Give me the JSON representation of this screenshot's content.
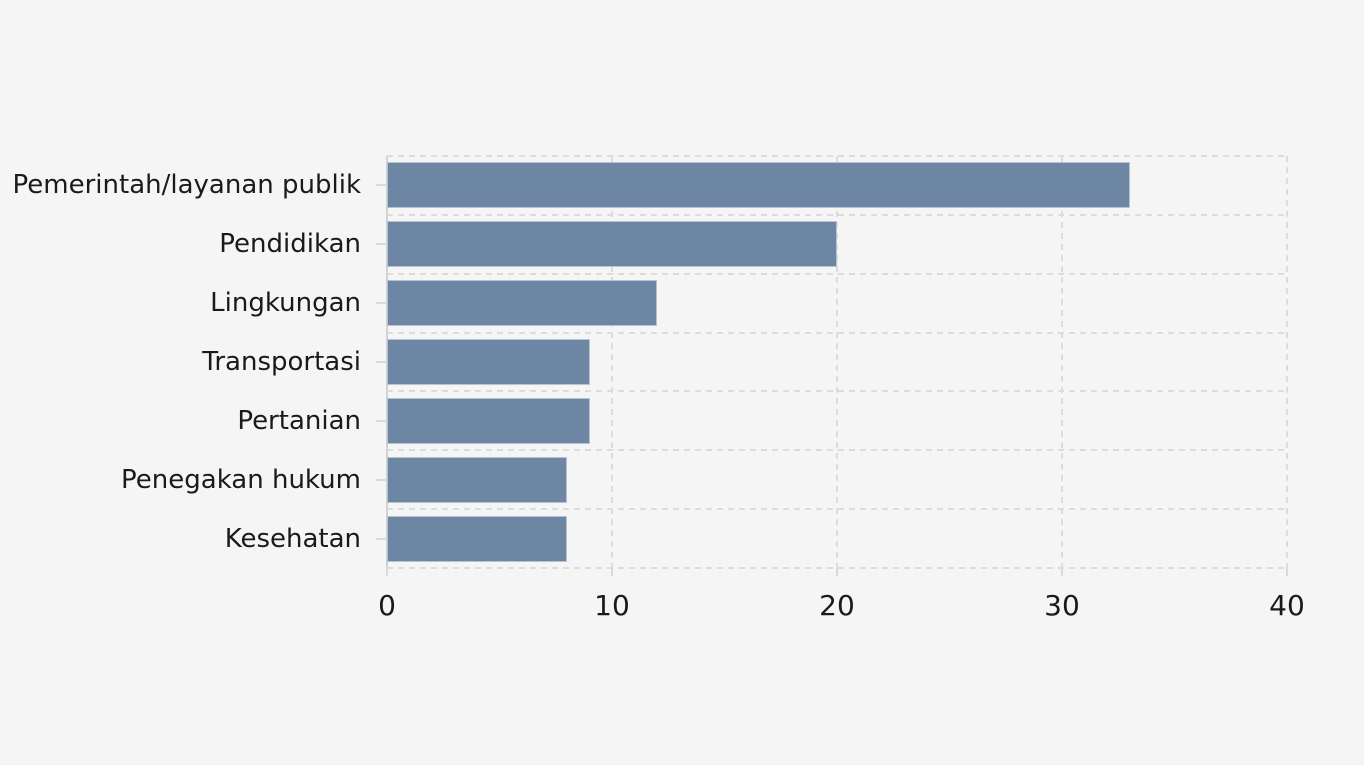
{
  "chart_data": {
    "type": "bar",
    "orientation": "horizontal",
    "title": "",
    "xlabel": "",
    "ylabel": "",
    "categories": [
      "Pemerintah/layanan publik",
      "Pendidikan",
      "Lingkungan",
      "Transportasi",
      "Pertanian",
      "Penegakan hukum",
      "Kesehatan"
    ],
    "values": [
      33,
      20,
      12,
      9,
      9,
      8,
      8
    ],
    "x_ticks": [
      0,
      10,
      20,
      30,
      40
    ],
    "xlim": [
      0,
      40
    ],
    "grid": "dashed",
    "grid_horizontal_lines": "at category boundaries",
    "legend_position": "none",
    "colors": {
      "bar": "#6d86a4",
      "background": "#f5f5f5",
      "gridline": "#dcdcdc",
      "axis_line": "#d2d2d2",
      "text": "#1a1a1a"
    }
  }
}
